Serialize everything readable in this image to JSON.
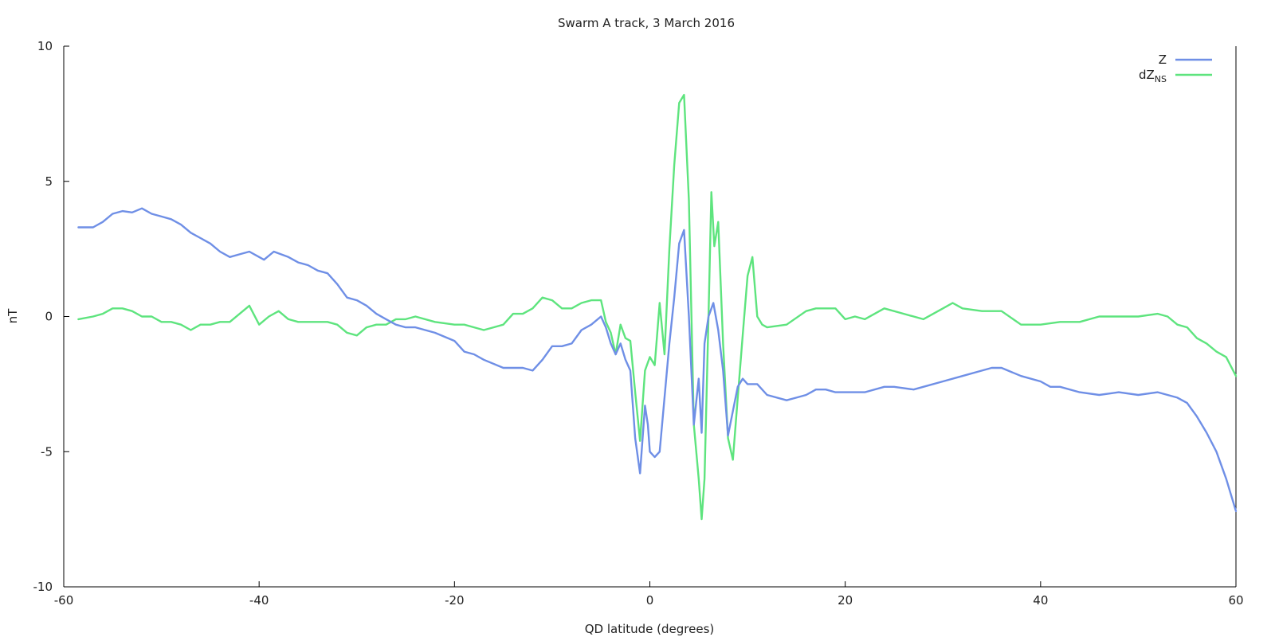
{
  "chart_data": {
    "type": "line",
    "title": "Swarm A track, 3 March 2016",
    "xlabel": "QD latitude (degrees)",
    "ylabel": "nT",
    "xlim": [
      -60,
      60
    ],
    "ylim": [
      -10,
      10
    ],
    "xticks": [
      -60,
      -40,
      -20,
      0,
      20,
      40,
      60
    ],
    "yticks": [
      -10,
      -5,
      0,
      5,
      10
    ],
    "xtick_labels": [
      "-60",
      "-40",
      "-20",
      "0",
      "20",
      "40",
      "60"
    ],
    "ytick_labels": [
      "-10",
      "-5",
      "0",
      "5",
      "10"
    ],
    "grid": false,
    "legend_position": "top-right",
    "series": [
      {
        "name": "Z",
        "label_main": "Z",
        "label_sub": "",
        "color": "#6f8fe6",
        "x": [
          -58.5,
          -57,
          -56,
          -55,
          -54,
          -53,
          -52,
          -51,
          -50,
          -49,
          -48,
          -47,
          -46,
          -45,
          -44,
          -43,
          -42,
          -41,
          -40,
          -39.5,
          -38.5,
          -37,
          -36,
          -35,
          -34,
          -33,
          -32,
          -31,
          -30,
          -29,
          -28,
          -27,
          -26,
          -25,
          -24,
          -22,
          -20,
          -19,
          -18,
          -17,
          -15,
          -14,
          -13,
          -12,
          -11,
          -10,
          -9,
          -8,
          -7,
          -6,
          -5,
          -4.5,
          -4,
          -3.5,
          -3,
          -2.5,
          -2,
          -1.5,
          -1,
          -0.7,
          -0.5,
          -0.2,
          0,
          0.5,
          1,
          1.5,
          2,
          2.5,
          3,
          3.5,
          4,
          4.5,
          5,
          5.3,
          5.6,
          6,
          6.5,
          7,
          7.5,
          8,
          8.5,
          9,
          9.5,
          10,
          11,
          12,
          14,
          15,
          16,
          17,
          18,
          19,
          20,
          22,
          24,
          25,
          27,
          28,
          30,
          32,
          34,
          35,
          36,
          38,
          40,
          41,
          42,
          44,
          46,
          48,
          50,
          52,
          53,
          54,
          55,
          56,
          57,
          58,
          59,
          60
        ],
        "y": [
          3.3,
          3.3,
          3.5,
          3.8,
          3.9,
          3.85,
          4.0,
          3.8,
          3.7,
          3.6,
          3.4,
          3.1,
          2.9,
          2.7,
          2.4,
          2.2,
          2.3,
          2.4,
          2.2,
          2.1,
          2.4,
          2.2,
          2.0,
          1.9,
          1.7,
          1.6,
          1.2,
          0.7,
          0.6,
          0.4,
          0.1,
          -0.1,
          -0.3,
          -0.4,
          -0.4,
          -0.6,
          -0.9,
          -1.3,
          -1.4,
          -1.6,
          -1.9,
          -1.9,
          -1.9,
          -2.0,
          -1.6,
          -1.1,
          -1.1,
          -1.0,
          -0.5,
          -0.3,
          0.0,
          -0.4,
          -1.0,
          -1.4,
          -1.0,
          -1.6,
          -2.0,
          -4.5,
          -5.8,
          -4.3,
          -3.3,
          -4.0,
          -5.0,
          -5.2,
          -5.0,
          -3.0,
          -1.0,
          0.7,
          2.7,
          3.2,
          0.0,
          -4.0,
          -2.3,
          -4.3,
          -1.0,
          0.0,
          0.5,
          -0.5,
          -2.0,
          -4.4,
          -3.5,
          -2.6,
          -2.3,
          -2.5,
          -2.5,
          -2.9,
          -3.1,
          -3.0,
          -2.9,
          -2.7,
          -2.7,
          -2.8,
          -2.8,
          -2.8,
          -2.6,
          -2.6,
          -2.7,
          -2.6,
          -2.4,
          -2.2,
          -2.0,
          -1.9,
          -1.9,
          -2.2,
          -2.4,
          -2.6,
          -2.6,
          -2.8,
          -2.9,
          -2.8,
          -2.9,
          -2.8,
          -2.9,
          -3.0,
          -3.2,
          -3.7,
          -4.3,
          -5.0,
          -6.0,
          -7.2
        ]
      },
      {
        "name": "dZNS",
        "label_main": "dZ",
        "label_sub": "NS",
        "color": "#5ee47e",
        "x": [
          -58.5,
          -57,
          -56,
          -55,
          -54,
          -53,
          -52,
          -51,
          -50,
          -49,
          -48,
          -47,
          -46,
          -45,
          -44,
          -43,
          -41,
          -40,
          -39,
          -38,
          -37,
          -36,
          -35,
          -34,
          -33,
          -32,
          -31,
          -30,
          -29,
          -28,
          -27,
          -26,
          -25,
          -24,
          -22,
          -20,
          -19,
          -18,
          -17,
          -16,
          -15,
          -14,
          -13,
          -12,
          -11,
          -10,
          -9,
          -8,
          -7,
          -6,
          -5,
          -4.5,
          -4,
          -3.5,
          -3,
          -2.5,
          -2,
          -1.5,
          -1,
          -0.5,
          0,
          0.5,
          1,
          1.5,
          2,
          2.5,
          3,
          3.5,
          4,
          4.5,
          5,
          5.3,
          5.6,
          6,
          6.3,
          6.6,
          7,
          7.5,
          8,
          8.5,
          9,
          9.5,
          10,
          10.5,
          11,
          11.5,
          12,
          14,
          16,
          17,
          18,
          19,
          20,
          21,
          22,
          24,
          26,
          28,
          30,
          31,
          32,
          34,
          36,
          38,
          40,
          42,
          44,
          46,
          48,
          50,
          52,
          53,
          54,
          55,
          56,
          57,
          58,
          59,
          60
        ],
        "y": [
          -0.1,
          0.0,
          0.1,
          0.3,
          0.3,
          0.2,
          0.0,
          0.0,
          -0.2,
          -0.2,
          -0.3,
          -0.5,
          -0.3,
          -0.3,
          -0.2,
          -0.2,
          0.4,
          -0.3,
          0.0,
          0.2,
          -0.1,
          -0.2,
          -0.2,
          -0.2,
          -0.2,
          -0.3,
          -0.6,
          -0.7,
          -0.4,
          -0.3,
          -0.3,
          -0.1,
          -0.1,
          0.0,
          -0.2,
          -0.3,
          -0.3,
          -0.4,
          -0.5,
          -0.4,
          -0.3,
          0.1,
          0.1,
          0.3,
          0.7,
          0.6,
          0.3,
          0.3,
          0.5,
          0.6,
          0.6,
          -0.2,
          -0.6,
          -1.4,
          -0.3,
          -0.8,
          -0.9,
          -2.8,
          -4.6,
          -2.0,
          -1.5,
          -1.8,
          0.5,
          -1.4,
          2.5,
          5.6,
          7.9,
          8.2,
          4.3,
          -4.0,
          -6.0,
          -7.5,
          -6.0,
          0.0,
          4.6,
          2.6,
          3.5,
          -1.0,
          -4.5,
          -5.3,
          -3.0,
          -0.7,
          1.5,
          2.2,
          0.0,
          -0.3,
          -0.4,
          -0.3,
          0.2,
          0.3,
          0.3,
          0.3,
          -0.1,
          0.0,
          -0.1,
          0.3,
          0.1,
          -0.1,
          0.3,
          0.5,
          0.3,
          0.2,
          0.2,
          -0.3,
          -0.3,
          -0.2,
          -0.2,
          0.0,
          0.0,
          0.0,
          0.1,
          0.0,
          -0.3,
          -0.4,
          -0.8,
          -1.0,
          -1.3,
          -1.5,
          -2.2
        ]
      }
    ]
  }
}
